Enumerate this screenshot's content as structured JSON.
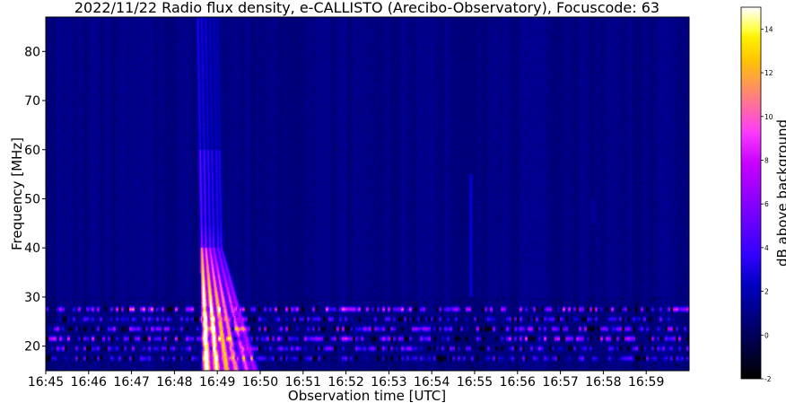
{
  "chart_data": {
    "type": "heatmap",
    "title": "2022/11/22  Radio flux density, e-CALLISTO (Arecibo-Observatory), Focuscode: 63",
    "xlabel": "Observation time [UTC]",
    "ylabel": "Frequency [MHz]",
    "x_ticks": [
      "16:45",
      "16:46",
      "16:47",
      "16:48",
      "16:49",
      "16:50",
      "16:51",
      "16:52",
      "16:53",
      "16:54",
      "16:55",
      "16:56",
      "16:57",
      "16:58",
      "16:59"
    ],
    "x_range_minutes_after_1645": [
      0,
      15
    ],
    "y_ticks": [
      20,
      30,
      40,
      50,
      60,
      70,
      80
    ],
    "y_range": [
      15,
      87
    ],
    "colormap": "gnuplot2",
    "colorbar": {
      "label": "dB above background",
      "ticks": [
        -2,
        0,
        2,
        4,
        6,
        8,
        10,
        12,
        14
      ],
      "range": [
        -2,
        15
      ]
    },
    "features": [
      {
        "kind": "burst",
        "time_start": "16:48:30",
        "time_end": "16:50:40",
        "freq_low": 15,
        "freq_high": 87,
        "peak_db": 15
      },
      {
        "kind": "faint_band",
        "time": "16:54:55",
        "freq_low": 30,
        "freq_high": 55,
        "peak_db": 2
      },
      {
        "kind": "faint_band",
        "time": "16:57:45",
        "freq_low": 45,
        "freq_high": 50,
        "peak_db": 1
      },
      {
        "kind": "rfi_band",
        "freq": 27.5,
        "peak_db": 8
      },
      {
        "kind": "rfi_band",
        "freq": 25.5,
        "peak_db": 4
      },
      {
        "kind": "rfi_band",
        "freq": 23.5,
        "peak_db": 6
      },
      {
        "kind": "rfi_band",
        "freq": 21.5,
        "peak_db": 7
      },
      {
        "kind": "rfi_band",
        "freq": 19.5,
        "peak_db": 5
      },
      {
        "kind": "rfi_band",
        "freq": 17.5,
        "peak_db": 4
      }
    ]
  }
}
